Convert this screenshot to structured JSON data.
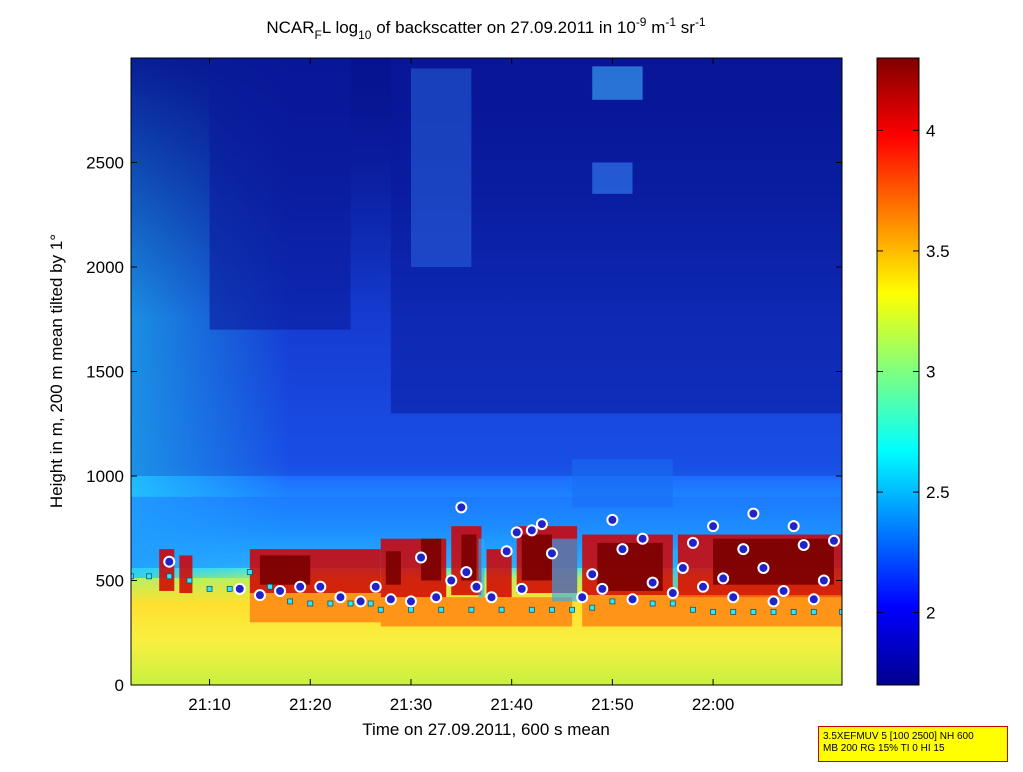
{
  "chart_data": {
    "type": "heatmap",
    "title": {
      "prefix": "NCAR",
      "sub1": "F",
      "mid": "L log",
      "sub2": "10",
      "suffix1": " of backscatter on 27.09.2011 in 10",
      "sup1": "-9",
      "suffix2": " m",
      "sup2": "-1",
      "suffix3": " sr",
      "sup3": "-1"
    },
    "xlabel": "Time on 27.09.2011, 600 s mean",
    "ylabel": "Height in m, 200 m mean tilted by 1°",
    "x_ticks": [
      "21:10",
      "21:20",
      "21:30",
      "21:40",
      "21:50",
      "22:00"
    ],
    "y_ticks": [
      "0",
      "500",
      "1000",
      "1500",
      "2000",
      "2500"
    ],
    "xlim_minutes_after_21_00": [
      2.2,
      72.8
    ],
    "ylim": [
      0,
      3000
    ],
    "colorbar": {
      "ticks": [
        "2",
        "2.5",
        "3",
        "3.5",
        "4"
      ],
      "range": [
        1.7,
        4.3
      ],
      "colormap": "jet"
    },
    "colors": {
      "background_low": "#0a1a9c",
      "mid_blue": "#1e60ff",
      "layer_yellow": "#ffe030",
      "layer_red": "#8b0000",
      "marker_cyan": "#33e5ff",
      "marker_blue": "#2222cc"
    },
    "series": [
      {
        "marker": "cyan-square",
        "x": [
          2.2,
          4,
          6,
          8,
          10,
          12,
          14,
          16,
          18,
          20,
          22,
          24,
          26,
          27,
          30,
          33,
          36,
          39,
          42,
          44,
          46,
          48,
          50,
          52,
          54,
          56,
          58,
          60,
          62,
          64,
          66,
          68,
          70,
          72.8
        ],
        "y": [
          520,
          520,
          520,
          500,
          460,
          460,
          540,
          470,
          400,
          390,
          390,
          390,
          390,
          360,
          360,
          360,
          360,
          360,
          360,
          360,
          360,
          370,
          400,
          400,
          390,
          390,
          360,
          350,
          350,
          350,
          350,
          350,
          350,
          350
        ]
      },
      {
        "marker": "blue-circle",
        "x": [
          6,
          13,
          15,
          17,
          19,
          21,
          23,
          25,
          26.5,
          28,
          30,
          31,
          32.5,
          34,
          35,
          35.5,
          36.5,
          38,
          39.5,
          40.5,
          41,
          42,
          43,
          44,
          47,
          48,
          49,
          50,
          51,
          52,
          53,
          54,
          56,
          57,
          58,
          59,
          60,
          61,
          62,
          63,
          64,
          65,
          66,
          67,
          68,
          69,
          70,
          71,
          72
        ],
        "y": [
          590,
          460,
          430,
          450,
          470,
          470,
          420,
          400,
          470,
          410,
          400,
          610,
          420,
          500,
          850,
          540,
          470,
          420,
          640,
          730,
          460,
          740,
          770,
          630,
          420,
          530,
          460,
          790,
          650,
          410,
          700,
          490,
          440,
          560,
          680,
          470,
          760,
          510,
          420,
          650,
          820,
          560,
          400,
          450,
          760,
          670,
          410,
          500,
          690
        ]
      }
    ]
  },
  "annotation": {
    "line1": "3.5XEFMUV 5 [100 2500] NH 600",
    "line2": "MB 200 RG 15% TI 0 HI 15"
  }
}
